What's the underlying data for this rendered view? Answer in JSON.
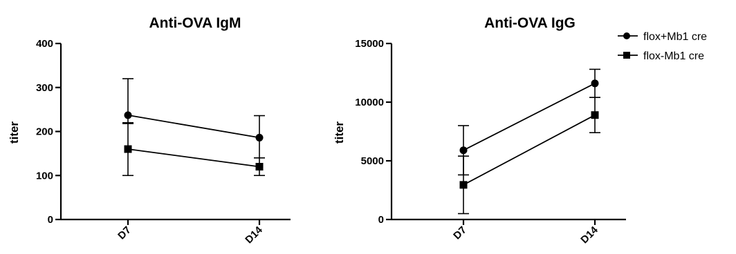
{
  "chart_data": [
    {
      "type": "line",
      "title": "Anti-OVA IgM",
      "ylabel": "titer",
      "xlabel": "",
      "categories": [
        "D7",
        "D14"
      ],
      "ylim": [
        0,
        400
      ],
      "yticks": [
        "0",
        "100",
        "200",
        "300",
        "400"
      ],
      "grid": false,
      "series": [
        {
          "name": "flox+Mb1 cre",
          "marker": "circle",
          "values": [
            237,
            186
          ],
          "error_low": [
            218,
            140
          ],
          "error_high": [
            320,
            236
          ]
        },
        {
          "name": "flox-Mb1 cre",
          "marker": "square",
          "values": [
            160,
            120
          ],
          "error_low": [
            100,
            100
          ],
          "error_high": [
            220,
            140
          ]
        }
      ]
    },
    {
      "type": "line",
      "title": "Anti-OVA IgG",
      "ylabel": "titer",
      "xlabel": "",
      "categories": [
        "D7",
        "D14"
      ],
      "ylim": [
        0,
        15000
      ],
      "yticks": [
        "0",
        "5000",
        "10000",
        "15000"
      ],
      "grid": false,
      "legend_position": "top-right",
      "series": [
        {
          "name": "flox+Mb1 cre",
          "marker": "circle",
          "values": [
            5900,
            11600
          ],
          "error_low": [
            3800,
            10400
          ],
          "error_high": [
            8000,
            12800
          ]
        },
        {
          "name": "flox-Mb1 cre",
          "marker": "square",
          "values": [
            2950,
            8900
          ],
          "error_low": [
            500,
            7400
          ],
          "error_high": [
            5400,
            10400
          ]
        }
      ]
    }
  ]
}
